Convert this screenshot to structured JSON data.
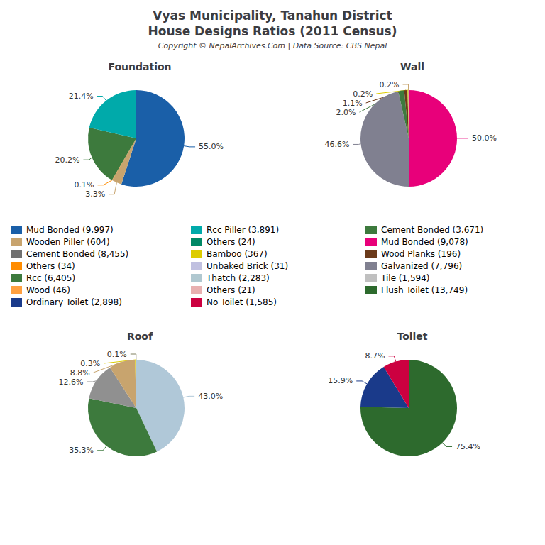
{
  "title": "Vyas Municipality, Tanahun District",
  "subtitle": "House Designs Ratios (2011 Census)",
  "annotations": [
    "Copyright © NepalArchives.Com | Data Source: CBS Nepal"
  ],
  "legend_items": [
    {
      "name": "Mud Bonded (9,997)",
      "color": "#1a5fa8"
    },
    {
      "name": "Wooden Piller (604)",
      "color": "#c8a46e"
    },
    {
      "name": "Cement Bonded (8,455)",
      "color": "#707070"
    },
    {
      "name": "Others (34)",
      "color": "#ff8c00"
    },
    {
      "name": "Rcc (6,405)",
      "color": "#3d7a3d"
    },
    {
      "name": "Wood (46)",
      "color": "#ffa040"
    },
    {
      "name": "Ordinary Toilet (2,898)",
      "color": "#1a3a8a"
    },
    {
      "name": "Rcc Piller (3,891)",
      "color": "#00aaaa"
    },
    {
      "name": "Others (24)",
      "color": "#008866"
    },
    {
      "name": "Bamboo (367)",
      "color": "#ddcc00"
    },
    {
      "name": "Unbaked Brick (31)",
      "color": "#c0c0e0"
    },
    {
      "name": "Thatch (2,283)",
      "color": "#b0c8d0"
    },
    {
      "name": "Others (21)",
      "color": "#e8b0b0"
    },
    {
      "name": "No Toilet (1,585)",
      "color": "#cc0040"
    },
    {
      "name": "Cement Bonded (3,671)",
      "color": "#3d7a3d"
    },
    {
      "name": "Mud Bonded (9,078)",
      "color": "#e8007a"
    },
    {
      "name": "Wood Planks (196)",
      "color": "#6b3a1a"
    },
    {
      "name": "Galvanized (7,796)",
      "color": "#808090"
    },
    {
      "name": "Tile (1,594)",
      "color": "#c0c0c0"
    },
    {
      "name": "Flush Toilet (13,749)",
      "color": "#2d6a2d"
    }
  ],
  "chart_data": [
    {
      "type": "pie",
      "title": "Foundation",
      "values": [
        55.0,
        3.3,
        0.1,
        20.2,
        21.4
      ],
      "value_labels": [
        "55.0%",
        "3.3%",
        "0.1%",
        "20.2%",
        "21.4%"
      ],
      "colors": [
        "#1a5fa8",
        "#c8a46e",
        "#ff8c00",
        "#3d7a3d",
        "#00aaaa"
      ],
      "data_labels": true
    },
    {
      "type": "pie",
      "title": "Wall",
      "values": [
        50.0,
        46.6,
        2.0,
        1.1,
        0.2,
        0.2
      ],
      "value_labels": [
        "50.0%",
        "46.6%",
        "2.0%",
        "1.1%",
        "0.2%",
        "0.2%"
      ],
      "colors": [
        "#e8007a",
        "#808090",
        "#3d7a3d",
        "#6b3a1a",
        "#ddcc00",
        "#c8a46e"
      ],
      "data_labels": true
    },
    {
      "type": "pie",
      "title": "Roof",
      "values": [
        43.0,
        35.3,
        12.6,
        8.8,
        0.3,
        0.1
      ],
      "value_labels": [
        "43.0%",
        "35.3%",
        "12.6%",
        "8.8%",
        "0.3%",
        "0.1%"
      ],
      "colors": [
        "#b0c8d8",
        "#3d7a3d",
        "#909090",
        "#c8a46e",
        "#ddcc00",
        "#808060"
      ],
      "data_labels": true
    },
    {
      "type": "pie",
      "title": "Toilet",
      "values": [
        75.4,
        15.9,
        8.7
      ],
      "value_labels": [
        "75.4%",
        "15.9%",
        "8.7%"
      ],
      "colors": [
        "#2d6a2d",
        "#1a3a8a",
        "#cc0040"
      ],
      "data_labels": true
    }
  ]
}
